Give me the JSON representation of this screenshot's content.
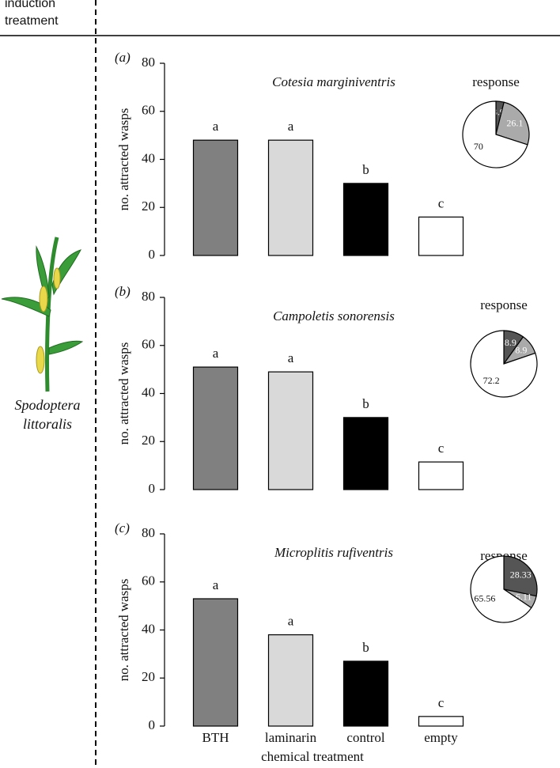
{
  "header": {
    "label": "induction treatment"
  },
  "treatment": {
    "label": "Spodoptera littoralis"
  },
  "chart_data": [
    {
      "type": "bar",
      "panel_label": "(a)",
      "title": "Cotesia marginiventris",
      "ylabel": "no. attracted wasps",
      "categories": [
        null,
        null,
        null,
        null
      ],
      "values": [
        48,
        48,
        30,
        16
      ],
      "colors": [
        "#808080",
        "#d9d9d9",
        "#000000",
        "#ffffff"
      ],
      "annotations": [
        "a",
        "a",
        "b",
        "c"
      ],
      "ylim": [
        0,
        80
      ],
      "yticks": [
        0,
        20,
        40,
        60,
        80
      ]
    },
    {
      "type": "pie",
      "title": "response",
      "values": [
        3.9,
        26.1,
        70
      ],
      "colors": [
        "#555555",
        "#aaaaaa",
        "#ffffff"
      ]
    },
    {
      "type": "bar",
      "panel_label": "(b)",
      "title": "Campoletis sonorensis",
      "ylabel": "no. attracted wasps",
      "categories": [
        null,
        null,
        null,
        null
      ],
      "values": [
        51,
        49,
        30,
        11.5
      ],
      "colors": [
        "#808080",
        "#d9d9d9",
        "#000000",
        "#ffffff"
      ],
      "annotations": [
        "a",
        "a",
        "b",
        "c"
      ],
      "ylim": [
        0,
        80
      ],
      "yticks": [
        0,
        20,
        40,
        60,
        80
      ]
    },
    {
      "type": "pie",
      "title": "response",
      "values": [
        8.9,
        8.9,
        72.2
      ],
      "colors": [
        "#555555",
        "#aaaaaa",
        "#ffffff"
      ]
    },
    {
      "type": "bar",
      "panel_label": "(c)",
      "title": "Microplitis rufiventris",
      "ylabel": "no. attracted wasps",
      "xlabel": "chemical treatment",
      "categories": [
        "BTH",
        "laminarin",
        "control",
        "empty"
      ],
      "values": [
        53,
        38,
        27,
        4
      ],
      "colors": [
        "#808080",
        "#d9d9d9",
        "#000000",
        "#ffffff"
      ],
      "annotations": [
        "a",
        "a",
        "b",
        "c"
      ],
      "ylim": [
        0,
        80
      ],
      "yticks": [
        0,
        20,
        40,
        60,
        80
      ]
    },
    {
      "type": "pie",
      "title": "response",
      "values": [
        28.33,
        6.11,
        65.56
      ],
      "colors": [
        "#555555",
        "#aaaaaa",
        "#ffffff"
      ]
    }
  ]
}
